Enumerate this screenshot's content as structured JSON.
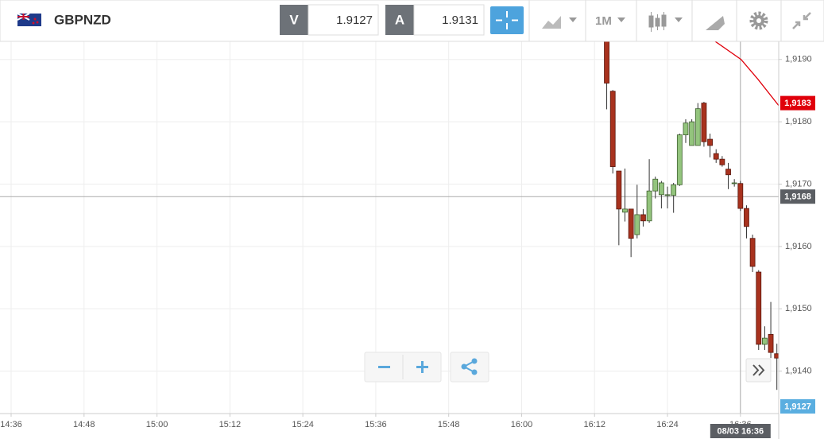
{
  "toolbar": {
    "symbol": "GBPNZD",
    "bid_label": "V",
    "bid": "1.9127",
    "ask_label": "A",
    "ask": "1.9131",
    "timeframe": "1M"
  },
  "chart_data": {
    "type": "candlestick",
    "x": [
      974,
      975,
      976,
      977,
      978,
      979,
      980,
      981,
      982,
      983,
      984,
      985,
      986,
      987,
      988,
      989,
      990,
      991,
      992,
      993,
      994,
      995,
      996,
      997,
      998,
      999,
      1000,
      1001,
      1002
    ],
    "open": [
      1.91929,
      1.91849,
      1.91721,
      1.91655,
      1.9166,
      1.91619,
      1.91651,
      1.91641,
      1.91689,
      1.91683,
      1.91682,
      1.91682,
      1.91699,
      1.91779,
      1.91762,
      1.91762,
      1.9183,
      1.91772,
      1.91749,
      1.9174,
      1.91724,
      1.91701,
      1.91701,
      1.91661,
      1.91613,
      1.91559,
      1.91443,
      1.91459,
      1.91428
    ],
    "high": [
      1.91938,
      1.91851,
      1.91721,
      1.91725,
      1.9166,
      1.91699,
      1.9166,
      1.9174,
      1.91712,
      1.91705,
      1.91696,
      1.91702,
      1.91781,
      1.91804,
      1.91804,
      1.9183,
      1.91832,
      1.91781,
      1.91756,
      1.91745,
      1.91734,
      1.91708,
      1.91705,
      1.91666,
      1.91619,
      1.91562,
      1.91472,
      1.91511,
      1.91444
    ],
    "low": [
      1.9182,
      1.91717,
      1.91602,
      1.9164,
      1.91583,
      1.91613,
      1.91632,
      1.91638,
      1.91677,
      1.91661,
      1.91661,
      1.91654,
      1.91697,
      1.91766,
      1.91762,
      1.91762,
      1.9176,
      1.91743,
      1.91734,
      1.91728,
      1.91692,
      1.91696,
      1.91657,
      1.91613,
      1.91559,
      1.91434,
      1.91434,
      1.91421,
      1.9137
    ],
    "close": [
      1.91862,
      1.91728,
      1.9166,
      1.9166,
      1.91613,
      1.91651,
      1.91641,
      1.91689,
      1.91708,
      1.91702,
      1.91683,
      1.91699,
      1.91779,
      1.91798,
      1.918,
      1.91821,
      1.91768,
      1.91762,
      1.9174,
      1.91731,
      1.91715,
      1.91702,
      1.91661,
      1.91632,
      1.91568,
      1.91443,
      1.91453,
      1.9143,
      1.91421
    ],
    "up_color": "#93c47d",
    "down_color": "#a8321e",
    "moving_average": {
      "color": "#e0000b",
      "x": [
        991.4,
        996.1,
        998.9,
        1002.3
      ],
      "values": [
        1.91932,
        1.919,
        1.91868,
        1.91826
      ]
    },
    "ma_label": {
      "value": 1.9183,
      "label": "1,9183"
    },
    "last_price": {
      "value": 1.9127,
      "label": "1,9127"
    },
    "crosshair": {
      "y": {
        "value": 1.9168,
        "label": "1,9168"
      },
      "x": {
        "value": 996,
        "label": "08/03 16:36"
      }
    },
    "xlim": [
      874.17,
      1002.3
    ],
    "ylim": [
      1.91332,
      1.91929
    ],
    "xticks": [
      {
        "value": 876,
        "label": "14:36"
      },
      {
        "value": 888,
        "label": "14:48"
      },
      {
        "value": 900,
        "label": "15:00"
      },
      {
        "value": 912,
        "label": "15:12"
      },
      {
        "value": 924,
        "label": "15:24"
      },
      {
        "value": 936,
        "label": "15:36"
      },
      {
        "value": 948,
        "label": "15:48"
      },
      {
        "value": 960,
        "label": "16:00"
      },
      {
        "value": 972,
        "label": "16:12"
      },
      {
        "value": 984,
        "label": "16:24"
      },
      {
        "value": 996,
        "label": "16:36"
      }
    ],
    "yticks": [
      {
        "value": 1.914,
        "label": "1,9140"
      },
      {
        "value": 1.915,
        "label": "1,9150"
      },
      {
        "value": 1.916,
        "label": "1,9160"
      },
      {
        "value": 1.917,
        "label": "1,9170"
      },
      {
        "value": 1.918,
        "label": "1,9180"
      },
      {
        "value": 1.919,
        "label": "1,9190"
      }
    ],
    "grid": true
  }
}
